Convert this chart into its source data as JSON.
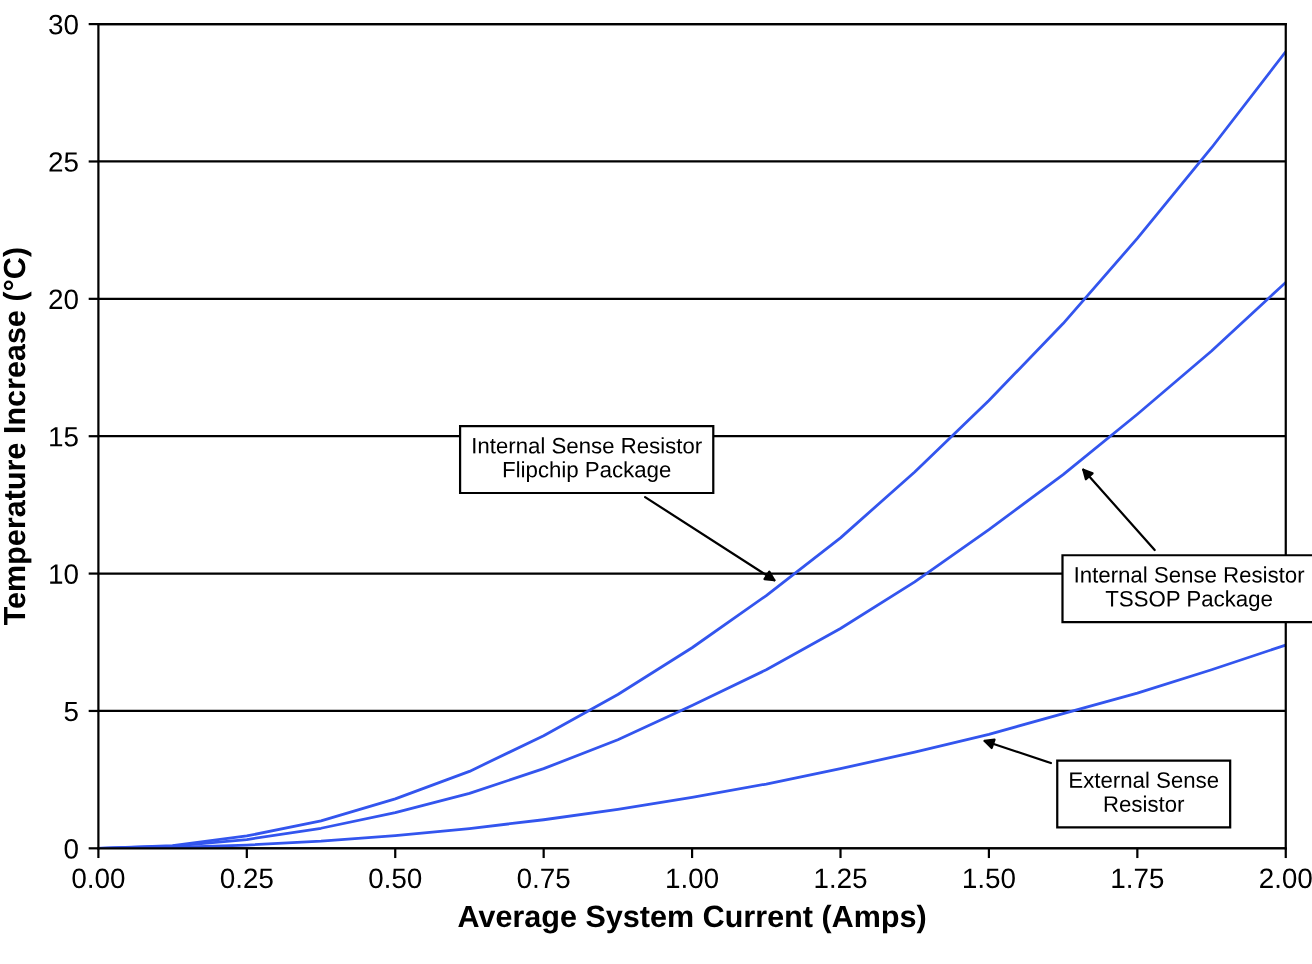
{
  "chart_data": {
    "type": "line",
    "xlabel": "Average System Current (Amps)",
    "ylabel": "Temperature Increase (°C)",
    "xlim": [
      0,
      2
    ],
    "ylim": [
      0,
      30
    ],
    "xticks": [
      {
        "value": 0,
        "label": "0.00"
      },
      {
        "value": 0.25,
        "label": "0.25"
      },
      {
        "value": 0.5,
        "label": "0.50"
      },
      {
        "value": 0.75,
        "label": "0.75"
      },
      {
        "value": 1,
        "label": "1.00"
      },
      {
        "value": 1.25,
        "label": "1.25"
      },
      {
        "value": 1.5,
        "label": "1.50"
      },
      {
        "value": 1.75,
        "label": "1.75"
      },
      {
        "value": 2,
        "label": "2.00"
      }
    ],
    "yticks": [
      0,
      5,
      10,
      15,
      20,
      25,
      30
    ],
    "grid": "y",
    "marker": "none",
    "line_style": "solid",
    "x": [
      0,
      0.125,
      0.25,
      0.375,
      0.5,
      0.625,
      0.75,
      0.875,
      1.0,
      1.125,
      1.25,
      1.375,
      1.5,
      1.625,
      1.75,
      1.875,
      2.0
    ],
    "series": [
      {
        "color": "#3355ee",
        "values": [
          0,
          0.1,
          0.45,
          1.0,
          1.8,
          2.8,
          4.1,
          5.6,
          7.3,
          9.2,
          11.3,
          13.7,
          16.3,
          19.1,
          22.2,
          25.5,
          29.0
        ]
      },
      {
        "color": "#3355ee",
        "values": [
          0,
          0.08,
          0.32,
          0.73,
          1.3,
          2.0,
          2.9,
          3.95,
          5.2,
          6.5,
          8.0,
          9.7,
          11.6,
          13.6,
          15.8,
          18.1,
          20.6
        ]
      },
      {
        "color": "#3355ee",
        "values": [
          0,
          0.03,
          0.12,
          0.26,
          0.46,
          0.72,
          1.04,
          1.42,
          1.85,
          2.34,
          2.9,
          3.5,
          4.15,
          4.9,
          5.65,
          6.5,
          7.4
        ]
      }
    ],
    "annotations": [
      {
        "text": "Internal Sense Resistor\nFlipchip Package",
        "x": 1.15,
        "y": 9.6
      },
      {
        "text": "Internal Sense Resistor\nTSSOP Package",
        "x": 1.65,
        "y": 14.0
      },
      {
        "text": "External Sense\nResistor",
        "x": 1.48,
        "y": 4.0
      }
    ]
  }
}
